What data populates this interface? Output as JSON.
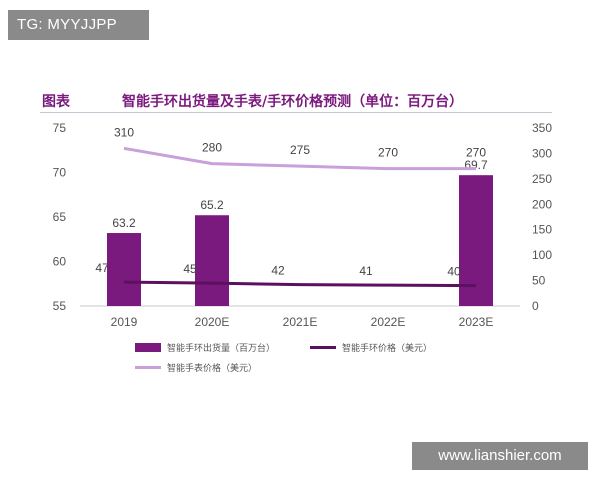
{
  "watermarks": {
    "top": "TG: MYYJJPP",
    "bottom": "www.lianshier.com"
  },
  "figure": {
    "label": "图表",
    "title": "智能手环出货量及手表/手环价格预测（单位：百万台）"
  },
  "colors": {
    "bar": "#7b1a7e",
    "band_price_line": "#5c1060",
    "watch_price_line": "#c9a0da",
    "axis": "#c8c8c8"
  },
  "chart_data": {
    "type": "bar",
    "categories": [
      "2019",
      "2020E",
      "2021E",
      "2022E",
      "2023E"
    ],
    "left_axis": {
      "ylim": [
        55,
        75
      ],
      "ticks": [
        55,
        60,
        65,
        70,
        75
      ]
    },
    "right_axis": {
      "ylim": [
        0,
        350
      ],
      "ticks": [
        0,
        50,
        100,
        150,
        200,
        250,
        300,
        350
      ]
    },
    "series": [
      {
        "name": "智能手环出货量（百万台）",
        "kind": "bar",
        "axis": "left",
        "values": [
          63.2,
          65.2,
          null,
          null,
          69.7
        ],
        "labels": [
          "63.2",
          "65.2",
          "",
          "",
          "69.7"
        ]
      },
      {
        "name": "智能手环价格（美元）",
        "kind": "line",
        "axis": "right",
        "values": [
          47,
          45,
          42,
          41,
          40
        ],
        "labels": [
          "47",
          "45",
          "42",
          "41",
          "40"
        ]
      },
      {
        "name": "智能手表价格（美元）",
        "kind": "line",
        "axis": "right",
        "values": [
          310,
          280,
          275,
          270,
          270
        ],
        "labels": [
          "310",
          "280",
          "275",
          "270",
          "270"
        ]
      }
    ],
    "legend_position": "bottom"
  }
}
